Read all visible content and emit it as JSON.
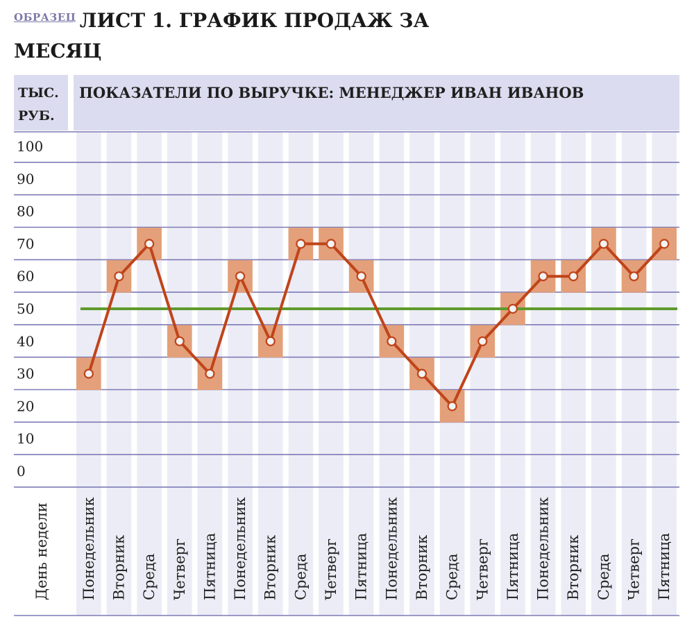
{
  "header": {
    "sample_label": "ОБРАЗЕЦ",
    "title_line1": "ЛИСТ 1. ГРАФИК ПРОДАЖ ЗА",
    "title_line2": "МЕСЯЦ"
  },
  "colors": {
    "header_bg": "#dcdcf0",
    "column_bg": "#ececf6",
    "grid_line": "#7d7ab5",
    "line": "#c0441a",
    "marker_fill": "#f3f3f3",
    "highlight": "#e3a07a",
    "target_line": "#5f9a2e"
  },
  "chart_data": {
    "type": "line",
    "title": "ПОКАЗАТЕЛИ ПО ВЫРУЧКЕ: МЕНЕДЖЕР ИВАН ИВАНОВ",
    "ylabel": "ТЫС. РУБ.",
    "xlabel": "День недели",
    "ylim": [
      0,
      100
    ],
    "yticks": [
      0,
      10,
      20,
      30,
      40,
      50,
      60,
      70,
      80,
      90,
      100
    ],
    "grid": true,
    "categories": [
      "Понедельник",
      "Вторник",
      "Среда",
      "Четверг",
      "Пятница",
      "Понедельник",
      "Вторник",
      "Среда",
      "Четверг",
      "Пятница",
      "Понедельник",
      "Вторник",
      "Среда",
      "Четверг",
      "Пятница",
      "Понедельник",
      "Вторник",
      "Среда",
      "Четверг",
      "Пятница"
    ],
    "series": [
      {
        "values": [
          30,
          60,
          70,
          40,
          30,
          60,
          40,
          70,
          70,
          60,
          40,
          30,
          20,
          40,
          50,
          60,
          60,
          70,
          60,
          70
        ]
      }
    ],
    "target_value": 50
  }
}
